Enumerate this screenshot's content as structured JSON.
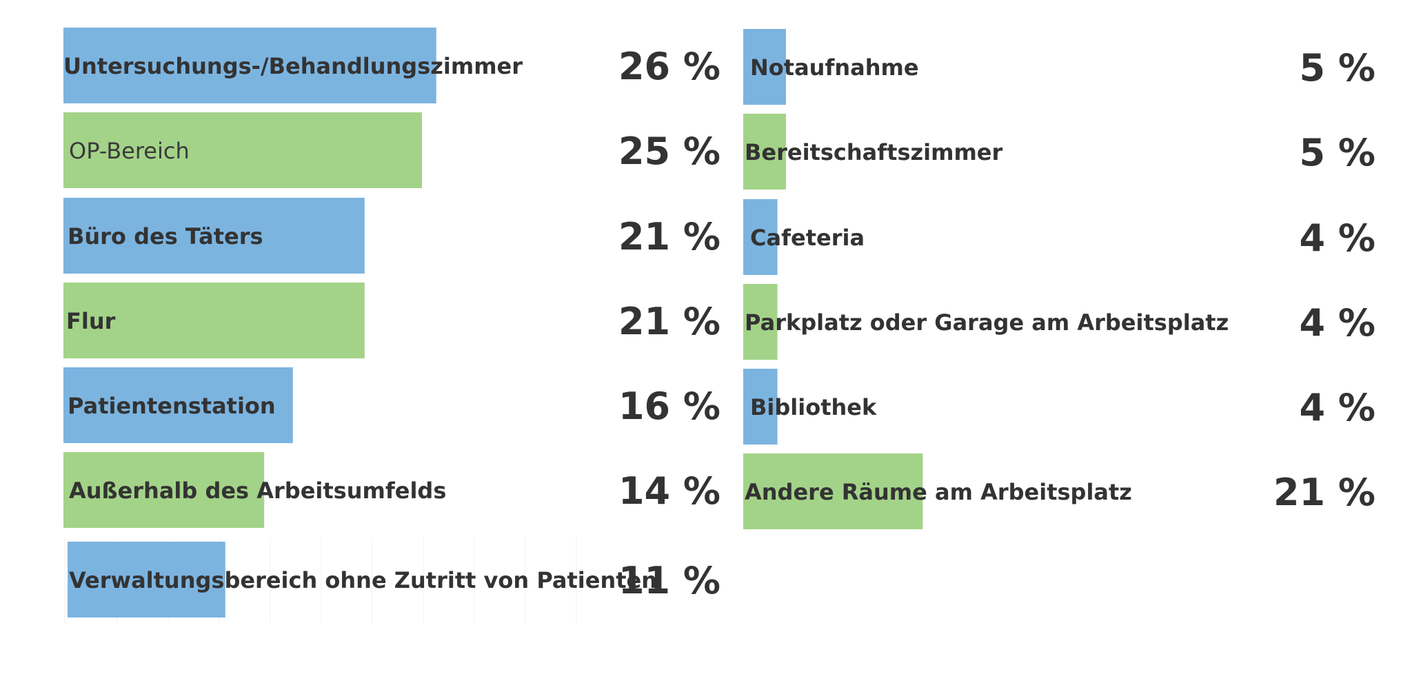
{
  "colors": {
    "blue": "#7cb4e0",
    "green": "#a3d388"
  },
  "chart_data": [
    {
      "type": "bar",
      "orientation": "horizontal",
      "categories": [
        "Untersuchungs-/Behandlungszimmer",
        "OP-Bereich",
        "Büro des Täters",
        "Flur",
        "Patientenstation",
        "Außerhalb des Arbeitsumfelds",
        "Verwaltungsbereich ohne Zutritt von Patienten"
      ],
      "values": [
        26,
        25,
        21,
        21,
        16,
        14,
        11
      ],
      "value_labels": [
        "26 %",
        "25 %",
        "21 %",
        "21 %",
        "16 %",
        "14 %",
        "11 %"
      ],
      "bar_colors": [
        "blue",
        "green",
        "blue",
        "green",
        "blue",
        "green",
        "blue"
      ]
    },
    {
      "type": "bar",
      "orientation": "horizontal",
      "categories": [
        "Notaufnahme",
        "Bereitschaftszimmer",
        "Cafeteria",
        "Parkplatz oder Garage am Arbeitsplatz",
        "Bibliothek",
        "Andere Räume am Arbeitsplatz"
      ],
      "values": [
        5,
        5,
        4,
        4,
        4,
        21
      ],
      "value_labels": [
        "5 %",
        "5 %",
        "4 %",
        "4 %",
        "4 %",
        "21 %"
      ],
      "bar_colors": [
        "blue",
        "green",
        "blue",
        "green",
        "blue",
        "green"
      ]
    }
  ]
}
